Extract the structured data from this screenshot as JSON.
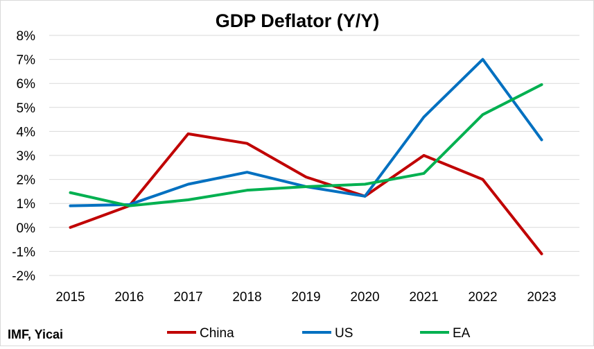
{
  "chart_data": {
    "type": "line",
    "title": "GDP Deflator (Y/Y)",
    "xlabel": "",
    "ylabel": "",
    "categories": [
      "2015",
      "2016",
      "2017",
      "2018",
      "2019",
      "2020",
      "2021",
      "2022",
      "2023"
    ],
    "ylim": [
      -2,
      8
    ],
    "y_ticks": [
      -2,
      -1,
      0,
      1,
      2,
      3,
      4,
      5,
      6,
      7,
      8
    ],
    "y_tick_labels": [
      "-2%",
      "-1%",
      "0%",
      "1%",
      "2%",
      "3%",
      "4%",
      "5%",
      "6%",
      "7%",
      "8%"
    ],
    "grid": "horizontal",
    "legend_position": "bottom",
    "series": [
      {
        "name": "China",
        "color": "#c00000",
        "values": [
          0.0,
          0.9,
          3.9,
          3.5,
          2.1,
          1.3,
          3.0,
          2.0,
          -1.1
        ]
      },
      {
        "name": "US",
        "color": "#0070c0",
        "values": [
          0.9,
          0.95,
          1.8,
          2.3,
          1.7,
          1.3,
          4.6,
          7.0,
          3.65
        ]
      },
      {
        "name": "EA",
        "color": "#00b050",
        "values": [
          1.45,
          0.9,
          1.15,
          1.55,
          1.7,
          1.8,
          2.25,
          4.7,
          5.95
        ]
      }
    ],
    "source": "IMF, Yicai"
  }
}
